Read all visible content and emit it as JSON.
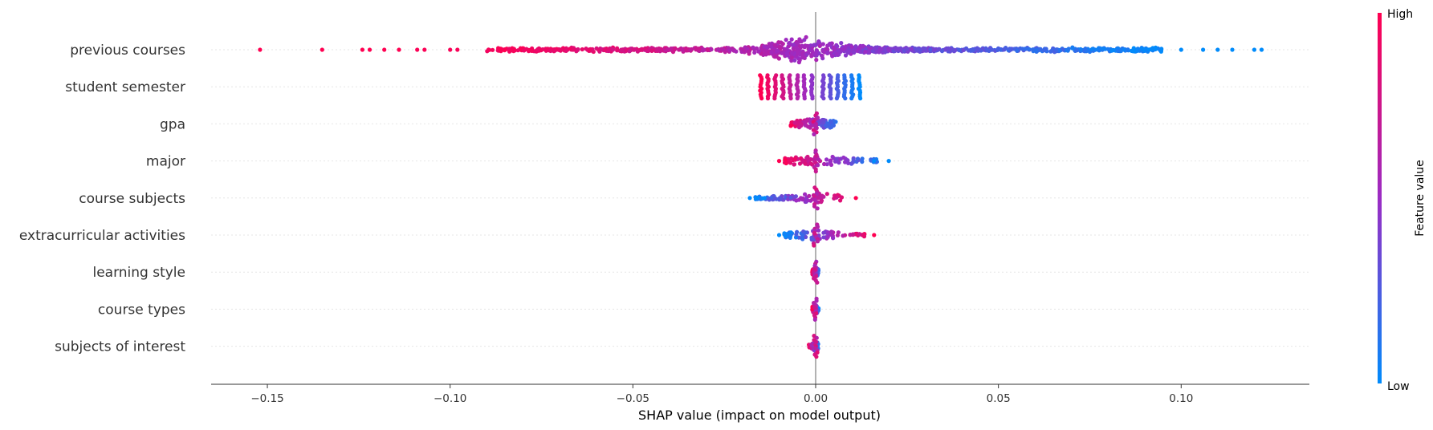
{
  "chart_data": {
    "type": "scatter",
    "subtype": "shap-beeswarm",
    "xlabel": "SHAP value (impact on model output)",
    "xlim": [
      -0.166,
      0.136
    ],
    "xticks": [
      -0.15,
      -0.1,
      -0.05,
      0.0,
      0.05,
      0.1
    ],
    "xtick_labels": [
      "−0.15",
      "−0.10",
      "−0.05",
      "0.00",
      "0.05",
      "0.10"
    ],
    "colorbar": {
      "title": "Feature value",
      "high_label": "High",
      "low_label": "Low",
      "low_color": "#008bfb",
      "high_color": "#ff0051"
    },
    "features": [
      {
        "name": "previous courses",
        "min": -0.152,
        "max": 0.122,
        "core": 0.03,
        "spread": 0.035,
        "density": 1.0,
        "outliers": [
          [
            -0.152,
            1.0
          ],
          [
            -0.135,
            1.0
          ],
          [
            -0.124,
            1.0
          ],
          [
            -0.122,
            1.0
          ],
          [
            -0.118,
            1.0
          ],
          [
            -0.114,
            1.0
          ],
          [
            -0.109,
            0.98
          ],
          [
            -0.107,
            0.98
          ],
          [
            -0.1,
            0.97
          ],
          [
            -0.098,
            0.97
          ],
          [
            0.1,
            0.0
          ],
          [
            0.106,
            0.0
          ],
          [
            0.11,
            0.0
          ],
          [
            0.114,
            0.0
          ],
          [
            0.12,
            0.0
          ],
          [
            0.122,
            0.0
          ]
        ]
      },
      {
        "name": "student semester",
        "min": -0.015,
        "max": 0.012,
        "bands": [
          -0.015,
          -0.013,
          -0.011,
          -0.009,
          -0.007,
          -0.005,
          -0.003,
          -0.001,
          0.002,
          0.004,
          0.006,
          0.008,
          0.01,
          0.012
        ]
      },
      {
        "name": "gpa",
        "min": -0.008,
        "max": 0.007,
        "core": 0.006,
        "spread": 0.006,
        "density": 0.6,
        "outliers": []
      },
      {
        "name": "major",
        "min": -0.01,
        "max": 0.02,
        "core": 0.003,
        "spread": 0.01,
        "density": 0.5,
        "outliers": [
          [
            -0.01,
            1.0
          ],
          [
            0.016,
            0.0
          ],
          [
            0.02,
            0.0
          ]
        ]
      },
      {
        "name": "course subjects",
        "min": -0.018,
        "max": 0.011,
        "core": 0.002,
        "spread": 0.008,
        "density": 0.5,
        "reverse": true,
        "outliers": [
          [
            -0.018,
            0.0
          ],
          [
            -0.016,
            0.0
          ],
          [
            -0.014,
            0.0
          ],
          [
            0.011,
            1.0
          ]
        ]
      },
      {
        "name": "extracurricular activities",
        "min": -0.01,
        "max": 0.016,
        "core": 0.002,
        "spread": 0.007,
        "density": 0.45,
        "reverse": true,
        "outliers": [
          [
            -0.01,
            0.0
          ],
          [
            0.016,
            1.0
          ]
        ]
      },
      {
        "name": "learning style",
        "min": -0.001,
        "max": 0.001,
        "core": 0.0005,
        "spread": 0.0005,
        "density": 0.35,
        "outliers": []
      },
      {
        "name": "course types",
        "min": -0.001,
        "max": 0.001,
        "core": 0.0004,
        "spread": 0.0004,
        "density": 0.3,
        "outliers": []
      },
      {
        "name": "subjects of interest",
        "min": -0.002,
        "max": 0.001,
        "core": 0.0006,
        "spread": 0.0006,
        "density": 0.3,
        "outliers": []
      }
    ]
  }
}
